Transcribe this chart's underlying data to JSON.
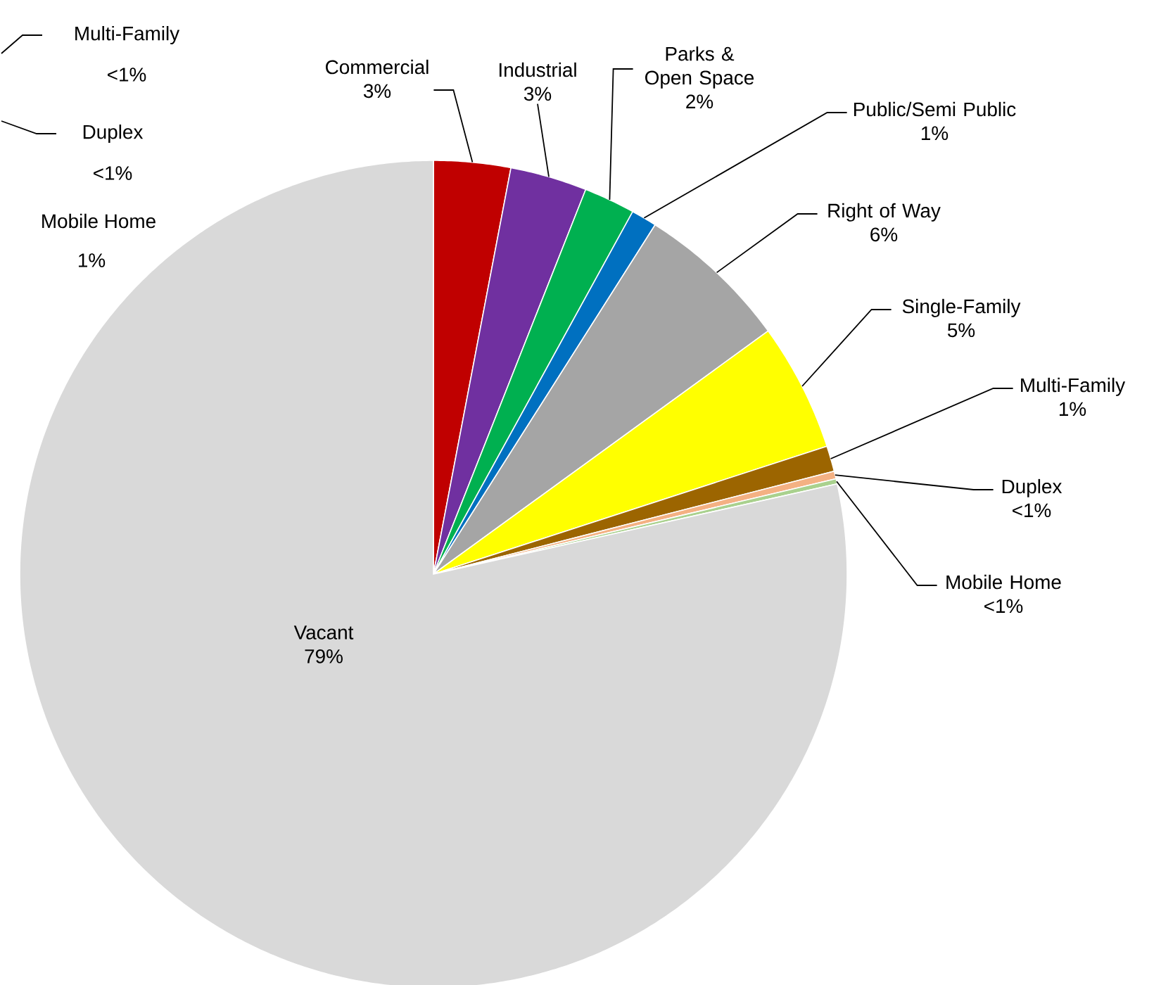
{
  "chart_data": {
    "type": "pie",
    "categories": [
      "Commercial",
      "Industrial",
      "Parks & Open Space",
      "Public/Semi Public",
      "Right of Way",
      "Single-Family",
      "Multi-Family",
      "Duplex",
      "Mobile Home",
      "Vacant"
    ],
    "values": [
      3,
      3,
      2,
      1,
      6,
      5,
      1,
      0.3,
      0.2,
      78.5
    ],
    "value_labels": [
      "3%",
      "3%",
      "2%",
      "1%",
      "6%",
      "5%",
      "1%",
      "<1%",
      "<1%",
      "79%"
    ],
    "colors": [
      "#c00000",
      "#7030a0",
      "#00b050",
      "#0070c0",
      "#a5a5a5",
      "#ffff00",
      "#9c6500",
      "#f4b183",
      "#a9d18e",
      "#d9d9d9"
    ],
    "annotations": [
      "Multi-Family",
      "<1%",
      "Duplex",
      "<1%",
      "Mobile Home",
      "1%"
    ]
  }
}
